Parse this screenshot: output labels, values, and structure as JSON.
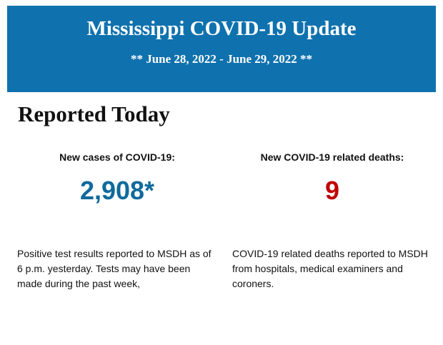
{
  "header": {
    "title": "Mississippi COVID-19 Update",
    "subtitle": "** June 28, 2022 - June 29, 2022 **"
  },
  "section_title": "Reported Today",
  "stats": [
    {
      "label": "New cases of COVID-19:",
      "value": "2,908*",
      "description": "Positive test results reported to MSDH as of 6 p.m. yesterday. Tests may have been made during the past week,"
    },
    {
      "label": "New COVID-19 related deaths:",
      "value": "9",
      "description": "COVID-19 related deaths reported to MSDH from hospitals, medical examiners and coroners."
    }
  ]
}
